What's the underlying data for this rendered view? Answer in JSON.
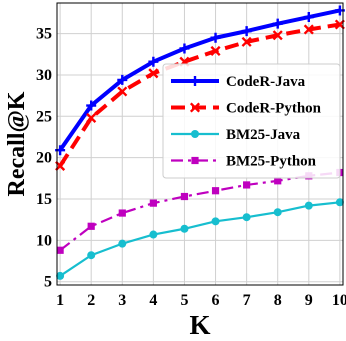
{
  "chart_data": {
    "type": "line",
    "title": "",
    "xlabel": "K",
    "ylabel": "Recall@K",
    "x": [
      1,
      2,
      3,
      4,
      5,
      6,
      7,
      8,
      9,
      10
    ],
    "xlim": [
      0.9,
      10.1
    ],
    "ylim": [
      4.6,
      38.7
    ],
    "yticks": [
      5,
      10,
      15,
      20,
      25,
      30,
      35
    ],
    "grid": true,
    "legend_position": "center-right",
    "series": [
      {
        "name": "CodeR-Java",
        "color": "#0000ff",
        "dash": "solid",
        "marker": "plus",
        "values": [
          20.9,
          26.3,
          29.4,
          31.6,
          33.2,
          34.5,
          35.3,
          36.2,
          37.0,
          37.8
        ]
      },
      {
        "name": "CodeR-Python",
        "color": "#ff0000",
        "dash": "dashed",
        "marker": "x",
        "values": [
          19.0,
          24.8,
          28.0,
          30.2,
          31.6,
          32.9,
          34.0,
          34.8,
          35.5,
          36.1
        ]
      },
      {
        "name": "BM25-Java",
        "color": "#17becf",
        "dash": "solid",
        "marker": "circle",
        "values": [
          5.7,
          8.2,
          9.6,
          10.7,
          11.4,
          12.3,
          12.8,
          13.4,
          14.2,
          14.6
        ]
      },
      {
        "name": "BM25-Python",
        "color": "#bf00bf",
        "dash": "dashdot",
        "marker": "square",
        "values": [
          8.8,
          11.7,
          13.3,
          14.5,
          15.3,
          16.0,
          16.7,
          17.2,
          17.8,
          18.2
        ]
      }
    ]
  }
}
